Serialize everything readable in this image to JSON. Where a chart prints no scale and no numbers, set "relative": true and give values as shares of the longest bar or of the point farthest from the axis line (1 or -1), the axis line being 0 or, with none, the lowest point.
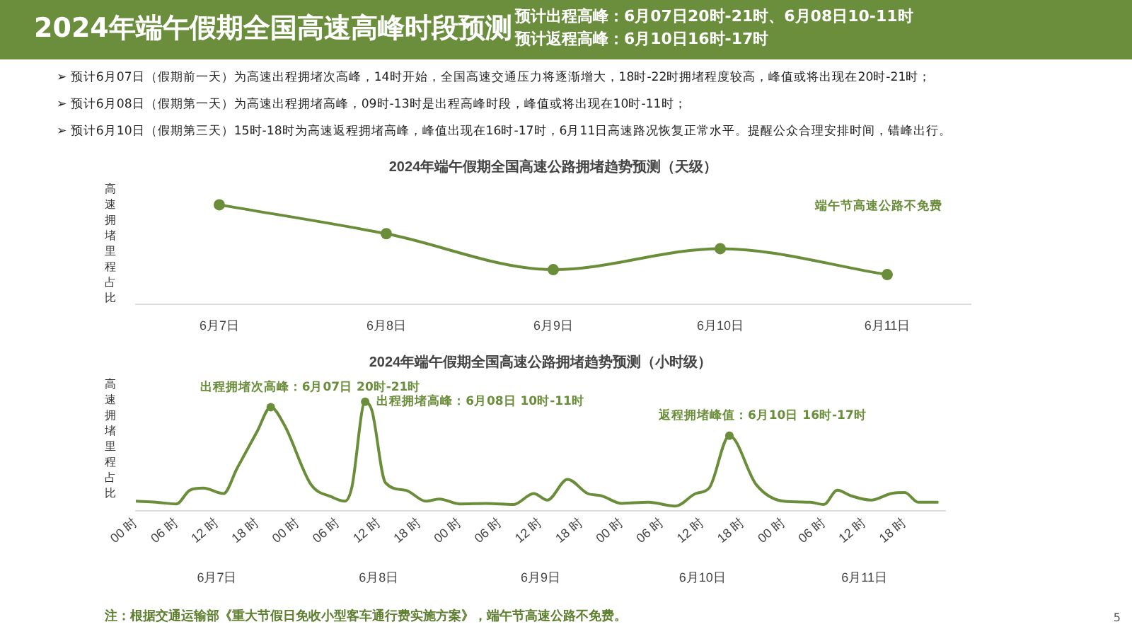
{
  "chart_data": [
    {
      "type": "other",
      "title": "2024年端午假期全国高速高峰时段预测",
      "subtitle": "预计出程高峰：6月07日20时-21时、6月08日10-11时预计返程高峰：6月10日16时-17时",
      "annotations": [
        "➢ 预计6月07日（假期前一天）为高速出程拥堵次高峰，14时开始，全国高速交通压力将逐渐增大，18时-22时拥堵程度较高，峰值或将出现在20时-21时；",
        "➢ 预计6月08日（假期第一天）为高速出程拥堵高峰，09时-13时是出程高峰时段，峰值或将出现在10时-11时；",
        "➢ 预计6月10日（假期第三天）15时-18时为高速返程拥堵高峰，峰值出现在16时-17时，6月11日高速路况恢复正常水平。提醒公众合理安排时间，错峰出行。"
      ]
    },
    {
      "type": "line",
      "title": "2024年端午假期全国高速公路拥堵趋势预测（天级）",
      "ylabel": "高速拥堵里程占比",
      "relative": true,
      "categories": [
        "6月7日",
        "6月8日",
        "6月9日",
        "6月10日",
        "6月11日"
      ],
      "series": [
        {
          "color": "#6a8d3a",
          "values": [
            1,
            0.71,
            0.35,
            0.56,
            0.3
          ]
        }
      ],
      "marker": "circle",
      "legend": false,
      "grid": false,
      "annotations": [
        "端午节高速公路不免费"
      ]
    },
    {
      "type": "line",
      "title": "2024年端午假期全国高速公路拥堵趋势预测（小时级）",
      "ylabel": "高速拥堵里程占比",
      "relative": true,
      "xlim": [
        "2024-06-07T00:00",
        "2024-06-12T00:00"
      ],
      "xticks": [
        {
          "value": "2024-06-07T00:00",
          "label": "00 时"
        },
        {
          "value": "2024-06-07T06:00",
          "label": "06 时"
        },
        {
          "value": "2024-06-07T12:00",
          "label": "12 时"
        },
        {
          "value": "2024-06-07T18:00",
          "label": "18 时"
        },
        {
          "value": "2024-06-08T00:00",
          "label": "00 时"
        },
        {
          "value": "2024-06-08T06:00",
          "label": "06 时"
        },
        {
          "value": "2024-06-08T12:00",
          "label": "12 时"
        },
        {
          "value": "2024-06-08T18:00",
          "label": "18 时"
        },
        {
          "value": "2024-06-09T00:00",
          "label": "00 时"
        },
        {
          "value": "2024-06-09T06:00",
          "label": "06 时"
        },
        {
          "value": "2024-06-09T12:00",
          "label": "12 时"
        },
        {
          "value": "2024-06-09T18:00",
          "label": "18 时"
        },
        {
          "value": "2024-06-10T00:00",
          "label": "00 时"
        },
        {
          "value": "2024-06-10T06:00",
          "label": "06 时"
        },
        {
          "value": "2024-06-10T12:00",
          "label": "12 时"
        },
        {
          "value": "2024-06-10T18:00",
          "label": "18 时"
        },
        {
          "value": "2024-06-11T00:00",
          "label": "00 时"
        },
        {
          "value": "2024-06-11T06:00",
          "label": "06 时"
        },
        {
          "value": "2024-06-11T12:00",
          "label": "12 时"
        },
        {
          "value": "2024-06-11T18:00",
          "label": "18 时"
        }
      ],
      "x2lim": [
        "2024-06-07T00:00",
        "2024-06-12T00:00"
      ],
      "x2ticks": [
        {
          "value": "2024-06-07T12:00",
          "label": "6月7日"
        },
        {
          "value": "2024-06-08T12:00",
          "label": "6月8日"
        },
        {
          "value": "2024-06-09T12:00",
          "label": "6月9日"
        },
        {
          "value": "2024-06-10T12:00",
          "label": "6月10日"
        },
        {
          "value": "2024-06-11T12:00",
          "label": "6月11日"
        }
      ],
      "series": [
        {
          "color": "#6a8d3a",
          "x": [
            "2024-06-07T00:00",
            "2024-06-07T03:00",
            "2024-06-07T06:00",
            "2024-06-07T08:00",
            "2024-06-07T10:00",
            "2024-06-07T13:00",
            "2024-06-07T15:00",
            "2024-06-07T18:00",
            "2024-06-07T20:00",
            "2024-06-07T22:00",
            "2024-06-08T02:00",
            "2024-06-08T05:00",
            "2024-06-08T07:00",
            "2024-06-08T08:00",
            "2024-06-08T10:00",
            "2024-06-08T11:00",
            "2024-06-08T13:00",
            "2024-06-08T16:00",
            "2024-06-08T19:00",
            "2024-06-08T21:00",
            "2024-06-09T00:00",
            "2024-06-09T04:00",
            "2024-06-09T08:00",
            "2024-06-09T11:00",
            "2024-06-09T13:00",
            "2024-06-09T16:00",
            "2024-06-09T19:00",
            "2024-06-09T21:00",
            "2024-06-10T00:00",
            "2024-06-10T04:00",
            "2024-06-10T08:00",
            "2024-06-10T11:00",
            "2024-06-10T13:00",
            "2024-06-10T16:00",
            "2024-06-10T20:00",
            "2024-06-11T00:00",
            "2024-06-11T04:00",
            "2024-06-11T06:00",
            "2024-06-11T08:00",
            "2024-06-11T10:00",
            "2024-06-11T13:00",
            "2024-06-11T16:00",
            "2024-06-11T18:00",
            "2024-06-11T20:00",
            "2024-06-11T23:00"
          ],
          "values": [
            0.09,
            0.08,
            0.065,
            0.19,
            0.21,
            0.16,
            0.39,
            0.73,
            0.95,
            0.79,
            0.24,
            0.13,
            0.09,
            0.21,
            1,
            0.92,
            0.26,
            0.19,
            0.09,
            0.11,
            0.065,
            0.07,
            0.06,
            0.16,
            0.1,
            0.29,
            0.16,
            0.14,
            0.07,
            0.08,
            0.045,
            0.16,
            0.21,
            0.69,
            0.24,
            0.09,
            0.08,
            0.06,
            0.19,
            0.14,
            0.1,
            0.16,
            0.17,
            0.08,
            0.08
          ]
        }
      ],
      "marker": "none",
      "legend": false,
      "grid": false,
      "annotations": [
        {
          "text": "出程拥堵次高峰：6月07日 20时-21时",
          "x": "2024-06-07T20:00",
          "y": 0.95
        },
        {
          "text": "出程拥堵高峰：6月08日 10时-11时",
          "x": "2024-06-08T10:00",
          "y": 1
        },
        {
          "text": "返程拥堵峰值：6月10日 16时-17时",
          "x": "2024-06-10T16:00",
          "y": 0.69
        },
        "注：根据交通运输部《重大节假日免收小型客车通行费实施方案》，端午节高速公路不免费。",
        "5"
      ]
    }
  ]
}
